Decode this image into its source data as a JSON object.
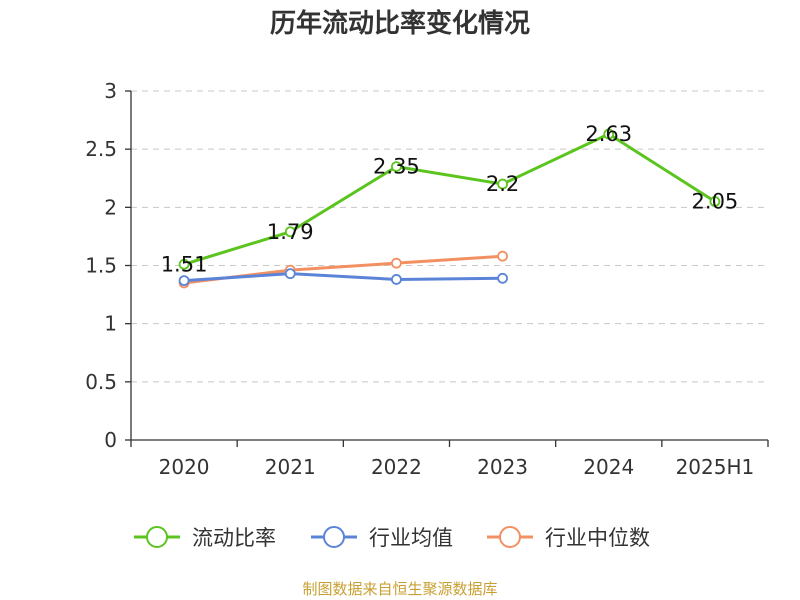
{
  "chart_data": {
    "type": "line",
    "title": "历年流动比率变化情况",
    "categories": [
      "2020",
      "2021",
      "2022",
      "2023",
      "2024",
      "2025H1"
    ],
    "ylim": [
      0,
      3
    ],
    "yticks": [
      "0",
      "0.5",
      "1",
      "1.5",
      "2",
      "2.5",
      "3"
    ],
    "ytick_values": [
      0,
      0.5,
      1,
      1.5,
      2,
      2.5,
      3
    ],
    "grid": true,
    "legend_position": "bottom",
    "series": [
      {
        "name": "流动比率",
        "color": "#5cc41e",
        "values": [
          1.51,
          1.79,
          2.35,
          2.2,
          2.63,
          2.05
        ],
        "labels": [
          "1.51",
          "1.79",
          "2.35",
          "2.2",
          "2.63",
          "2.05"
        ]
      },
      {
        "name": "行业均值",
        "color": "#5b84d8",
        "values": [
          1.37,
          1.43,
          1.38,
          1.39,
          null,
          null
        ]
      },
      {
        "name": "行业中位数",
        "color": "#f39062",
        "values": [
          1.35,
          1.46,
          1.52,
          1.58,
          null,
          null
        ]
      }
    ],
    "source": "制图数据来自恒生聚源数据库"
  }
}
